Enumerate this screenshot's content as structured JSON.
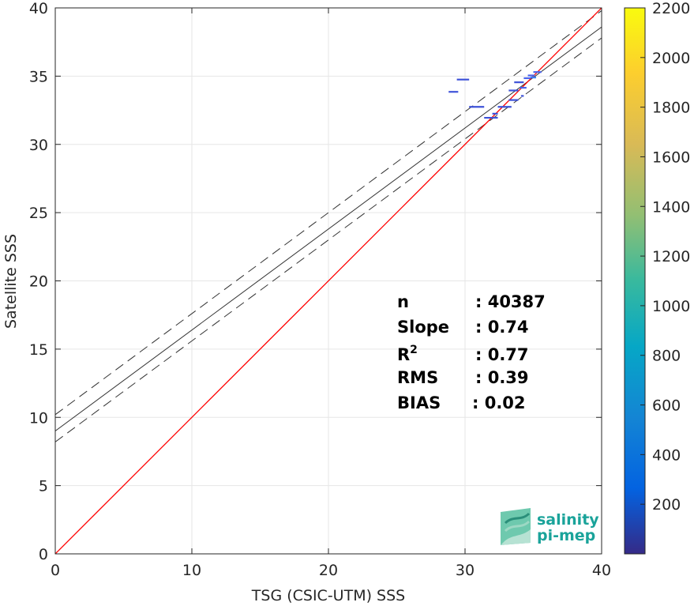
{
  "chart_data": {
    "type": "scatter",
    "xlabel": "TSG (CSIC-UTM) SSS",
    "ylabel": "Satellite SSS",
    "xlim": [
      0,
      40
    ],
    "ylim": [
      0,
      40
    ],
    "xticks": [
      0,
      10,
      20,
      30,
      40
    ],
    "yticks": [
      0,
      5,
      10,
      15,
      20,
      25,
      30,
      35,
      40
    ],
    "grid": true,
    "colorbar": {
      "range": [
        0,
        2200
      ],
      "ticks": [
        200,
        400,
        600,
        800,
        1000,
        1200,
        1400,
        1600,
        1800,
        2000,
        2200
      ],
      "colormap": "parula"
    },
    "one_to_one_line": {
      "from": [
        0,
        0
      ],
      "to": [
        40,
        40
      ],
      "color": "#ff0000"
    },
    "regression_line": {
      "slope": 0.74,
      "intercept": 9.0,
      "color": "#333333"
    },
    "confidence_lines": [
      {
        "slope": 0.74,
        "intercept": 10.2
      },
      {
        "slope": 0.74,
        "intercept": 8.2
      }
    ],
    "density_bins": [
      {
        "x0": 29.4,
        "x1": 30.3,
        "y": 34.75,
        "count": 150
      },
      {
        "x0": 28.8,
        "x1": 29.5,
        "y": 33.85,
        "count": 130
      },
      {
        "x0": 30.3,
        "x1": 31.4,
        "y": 32.75,
        "count": 120
      },
      {
        "x0": 31.4,
        "x1": 32.4,
        "y": 31.95,
        "count": 140
      },
      {
        "x0": 32.0,
        "x1": 32.4,
        "y": 32.25,
        "count": 160
      },
      {
        "x0": 32.4,
        "x1": 33.4,
        "y": 32.75,
        "count": 130
      },
      {
        "x0": 33.2,
        "x1": 33.9,
        "y": 33.25,
        "count": 120
      },
      {
        "x0": 33.2,
        "x1": 33.9,
        "y": 33.95,
        "count": 150
      },
      {
        "x0": 33.6,
        "x1": 34.3,
        "y": 34.55,
        "count": 160
      },
      {
        "x0": 34.0,
        "x1": 34.5,
        "y": 34.15,
        "count": 180
      },
      {
        "x0": 34.3,
        "x1": 34.8,
        "y": 34.85,
        "count": 200
      },
      {
        "x0": 34.6,
        "x1": 35.1,
        "y": 35.05,
        "count": 220
      },
      {
        "x0": 35.0,
        "x1": 35.6,
        "y": 35.3,
        "count": 180
      },
      {
        "x0": 34.1,
        "x1": 34.3,
        "y": 33.55,
        "count": 140
      },
      {
        "x0": 34.8,
        "x1": 35.2,
        "y": 34.9,
        "count": 250
      }
    ],
    "statistics": [
      {
        "label": "n",
        "value": ": 40387"
      },
      {
        "label": "Slope",
        "value": ": 0.74"
      },
      {
        "label": "R",
        "sup": "2",
        "value": ": 0.77"
      },
      {
        "label": "RMS",
        "value": ": 0.39"
      },
      {
        "label": "BIAS",
        "value": ": 0.02"
      }
    ]
  },
  "logo": {
    "line1": "salinity",
    "line2": "pi-mep"
  },
  "colors": {
    "one_to_one": "#ff0000",
    "regression": "#333333",
    "grid": "#e6e6e6",
    "axis": "#262626",
    "logo": "#1aa39a"
  }
}
